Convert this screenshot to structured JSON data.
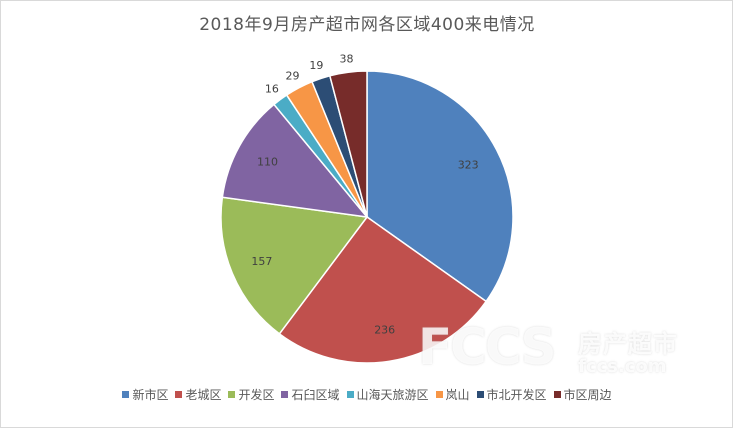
{
  "chart_data": {
    "type": "pie",
    "title": "2018年9月房产超市网各区域400来电情况",
    "start_angle_deg": 0,
    "direction": "clockwise",
    "slices": [
      {
        "label": "新市区",
        "value": 323,
        "color": "#4f81bd"
      },
      {
        "label": "老城区",
        "value": 236,
        "color": "#c0504d"
      },
      {
        "label": "开发区",
        "value": 157,
        "color": "#9bbb59"
      },
      {
        "label": "石臼区域",
        "value": 110,
        "color": "#8064a2"
      },
      {
        "label": "山海天旅游区",
        "value": 16,
        "color": "#4bacc6"
      },
      {
        "label": "岚山",
        "value": 29,
        "color": "#f79646"
      },
      {
        "label": "市北开发区",
        "value": 19,
        "color": "#2c4d75"
      },
      {
        "label": "市区周边",
        "value": 38,
        "color": "#772c2a"
      }
    ],
    "legend_position": "bottom"
  },
  "watermark": {
    "logo": "FCCS",
    "name": "房产超市",
    "url": "fccs.com"
  }
}
